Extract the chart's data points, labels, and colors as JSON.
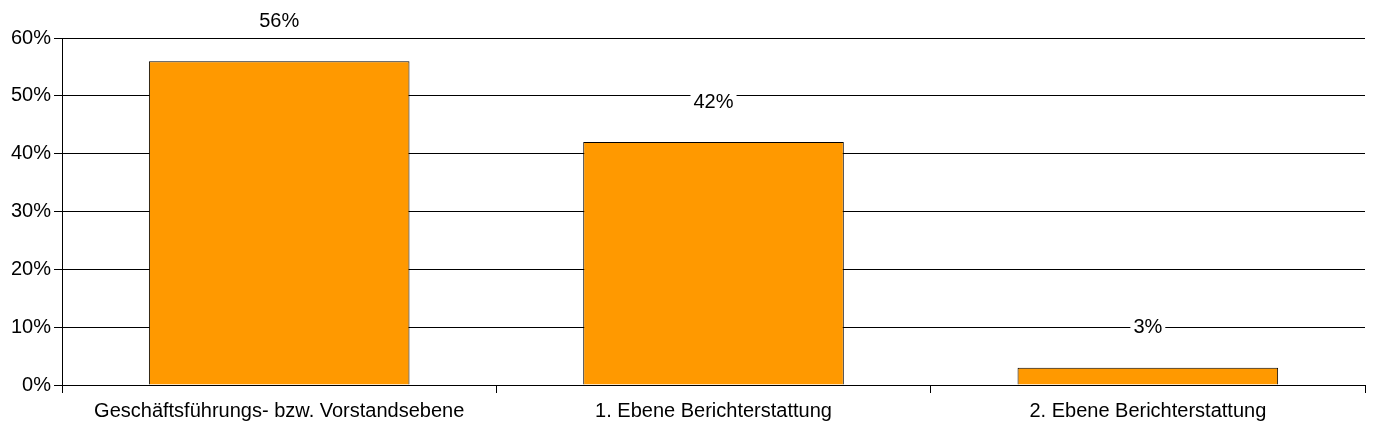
{
  "chart_data": {
    "type": "bar",
    "categories": [
      "Geschäftsführungs- bzw. Vorstandsebene",
      "1. Ebene Berichterstattung",
      "2. Ebene Berichterstattung"
    ],
    "values": [
      56,
      42,
      3
    ],
    "value_labels": [
      "56%",
      "42%",
      "3%"
    ],
    "color": "#ff9900",
    "ylim": [
      0,
      60
    ],
    "yticks": [
      {
        "value": 0,
        "label": "0%"
      },
      {
        "value": 10,
        "label": "10%"
      },
      {
        "value": 20,
        "label": "20%"
      },
      {
        "value": 30,
        "label": "30%"
      },
      {
        "value": 40,
        "label": "40%"
      },
      {
        "value": 50,
        "label": "50%"
      },
      {
        "value": 60,
        "label": "60%"
      }
    ],
    "grid": "y",
    "legend": false
  }
}
